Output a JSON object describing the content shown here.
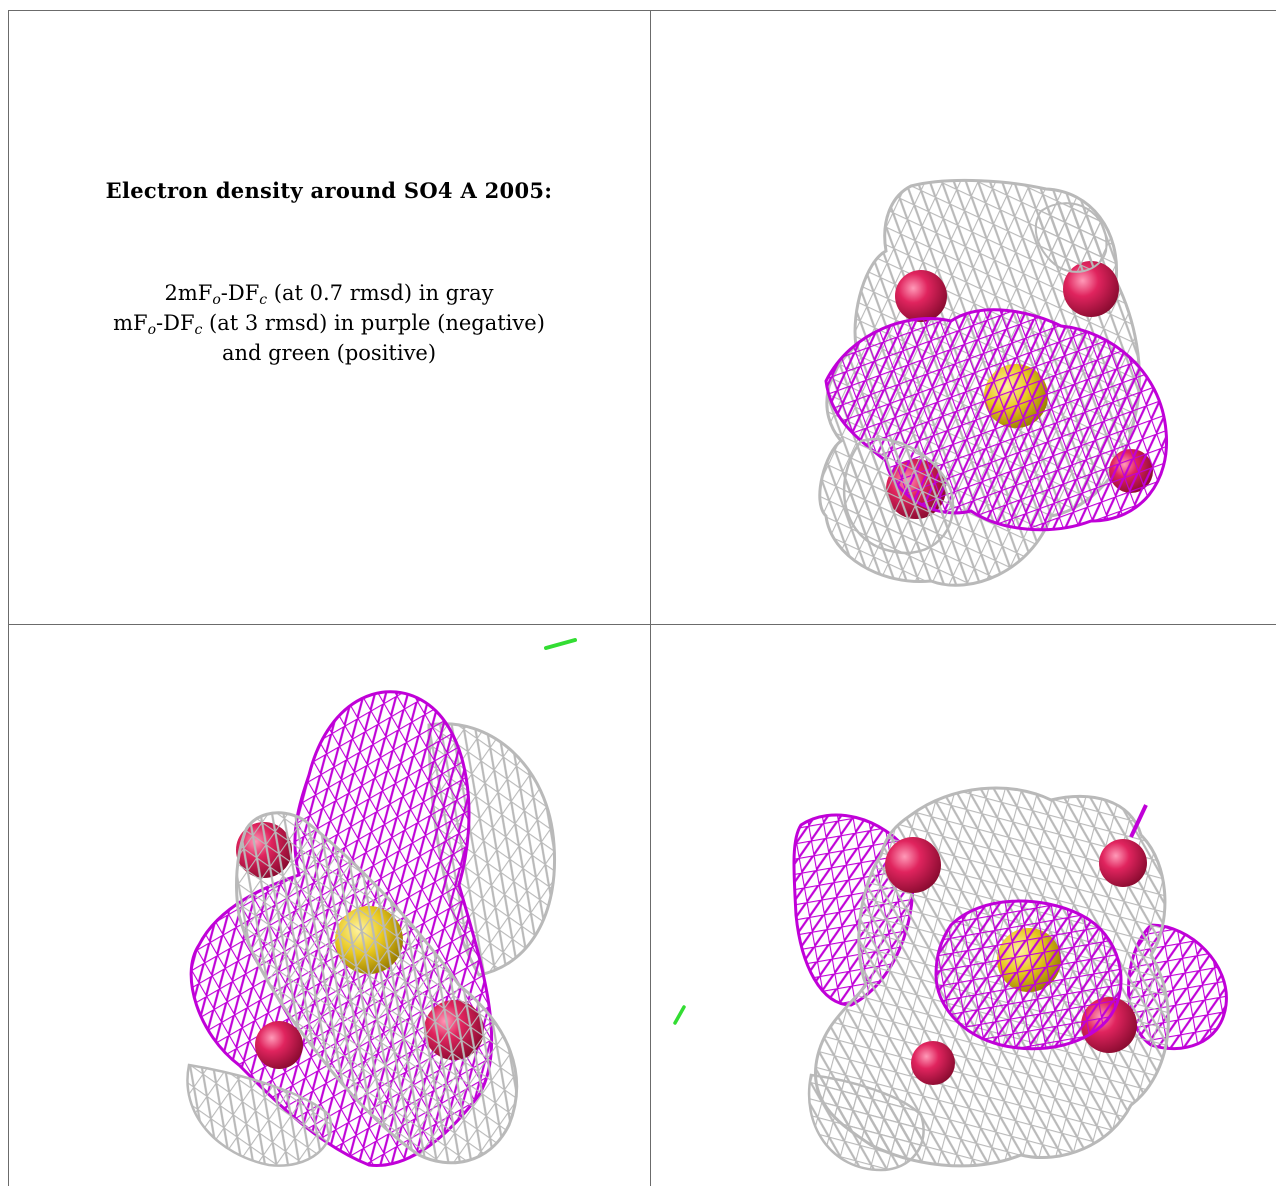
{
  "caption": {
    "title": "Electron density around SO4 A 2005:",
    "line1": {
      "pre": "2mF",
      "sub1": "o",
      "mid": "-DF",
      "sub2": "c",
      "post": " (at 0.7 rmsd) in gray"
    },
    "line2": {
      "pre": "mF",
      "sub1": "o",
      "mid": "-DF",
      "sub2": "c",
      "post": " (at 3 rmsd) in purple (negative)"
    },
    "line3": "and green (positive)"
  },
  "colors": {
    "gray_mesh": "#b9b9b9",
    "purple_mesh": "#c000d8",
    "green_mesh": "#33dd33",
    "oxygen": "#e0245e",
    "sulfur": "#e8c820",
    "border": "#6b6b6b"
  },
  "panels": [
    {
      "name": "view-top-right",
      "icon": "density-mesh-icon"
    },
    {
      "name": "view-bottom-left",
      "icon": "density-mesh-icon"
    },
    {
      "name": "view-bottom-right",
      "icon": "density-mesh-icon"
    }
  ]
}
